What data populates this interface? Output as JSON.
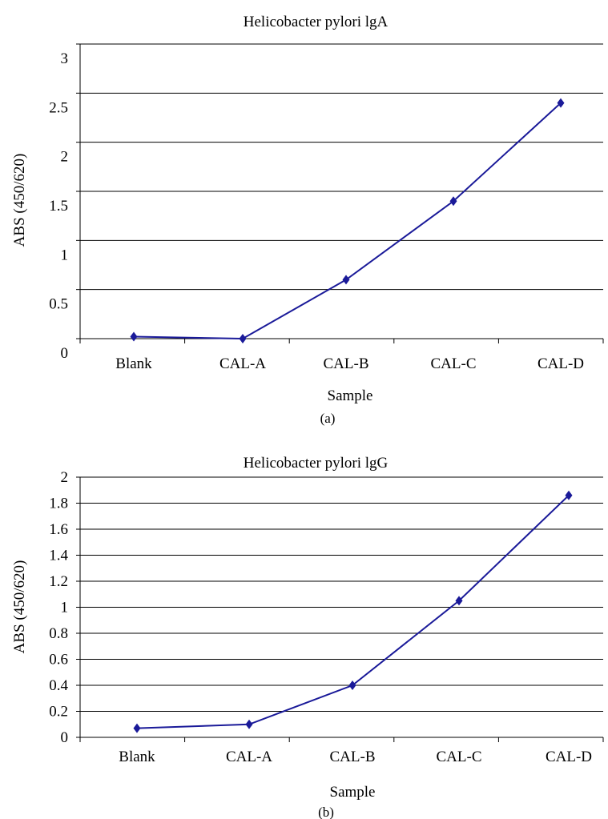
{
  "chart_data": [
    {
      "type": "line",
      "title": "Helicobacter pylori lgA",
      "xlabel": "Sample",
      "ylabel": "ABS (450/620)",
      "caption": "(a)",
      "categories": [
        "Blank",
        "CAL-A",
        "CAL-B",
        "CAL-C",
        "CAL-D"
      ],
      "series": [
        {
          "values": [
            0.02,
            0.0,
            0.6,
            1.4,
            2.4
          ],
          "color": "#1a1a99"
        }
      ],
      "ylim": [
        0,
        3
      ],
      "yticks": [
        "0",
        "0.5",
        "1",
        "1.5",
        "2",
        "2.5",
        "3"
      ],
      "grid": true,
      "legend": "none"
    },
    {
      "type": "line",
      "title": "Helicobacter pylori lgG",
      "xlabel": "Sample",
      "ylabel": "ABS (450/620)",
      "caption": "(b)",
      "categories": [
        "Blank",
        "CAL-A",
        "CAL-B",
        "CAL-C",
        "CAL-D"
      ],
      "series": [
        {
          "values": [
            0.07,
            0.1,
            0.4,
            1.05,
            1.86
          ],
          "color": "#1a1a99"
        }
      ],
      "ylim": [
        0,
        2
      ],
      "yticks": [
        "0",
        "0.2",
        "0.4",
        "0.6",
        "0.8",
        "1",
        "1.2",
        "1.4",
        "1.6",
        "1.8",
        "2"
      ],
      "grid": true,
      "legend": "none"
    }
  ]
}
